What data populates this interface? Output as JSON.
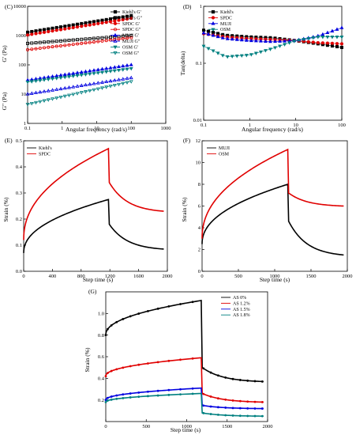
{
  "chart_data": [
    {
      "id": "C",
      "type": "scatter",
      "panel_label": "(C)",
      "xlabel": "Angular frequency (rad/s)",
      "ylabel_top": "G' (Pa)",
      "ylabel_bottom": "G\" (Pa)",
      "xscale": "log",
      "yscale": "log",
      "xlim": [
        0.1,
        1000
      ],
      "ylim": [
        1,
        10000
      ],
      "xticks": [
        0.1,
        1,
        10,
        100,
        1000
      ],
      "xtick_labels": [
        "0.1",
        "1",
        "10",
        "100",
        "1000"
      ],
      "yticks": [
        1,
        10,
        100,
        1000,
        10000
      ],
      "ytick_labels": [
        "1",
        "10",
        "100",
        "1000",
        "10000"
      ],
      "legend_position": "top-right",
      "series": [
        {
          "name": "Kiehl's G'",
          "color": "#000000",
          "marker": "square",
          "filled": true,
          "x": [
            0.1,
            100
          ],
          "y": [
            1300,
            4800
          ]
        },
        {
          "name": "Kiehl's G\"",
          "color": "#000000",
          "marker": "square",
          "filled": false,
          "x": [
            0.1,
            100
          ],
          "y": [
            540,
            1000
          ]
        },
        {
          "name": "SPDC G'",
          "color": "#e00000",
          "marker": "circle",
          "filled": true,
          "x": [
            0.1,
            100
          ],
          "y": [
            1050,
            3900
          ]
        },
        {
          "name": "SPDC G\"",
          "color": "#e00000",
          "marker": "circle",
          "filled": false,
          "x": [
            0.1,
            100
          ],
          "y": [
            330,
            850
          ]
        },
        {
          "name": "MUJI G'",
          "color": "#0000e0",
          "marker": "triangle",
          "filled": true,
          "x": [
            0.1,
            100
          ],
          "y": [
            30,
            100
          ]
        },
        {
          "name": "MUJI G\"",
          "color": "#0000e0",
          "marker": "triangle",
          "filled": false,
          "x": [
            0.1,
            100
          ],
          "y": [
            10,
            36
          ]
        },
        {
          "name": "OSM G'",
          "color": "#008080",
          "marker": "triangle-down",
          "filled": true,
          "x": [
            0.1,
            100
          ],
          "y": [
            26,
            75
          ]
        },
        {
          "name": "OSM G\"",
          "color": "#008080",
          "marker": "triangle-down",
          "filled": false,
          "x": [
            0.1,
            100
          ],
          "y": [
            4.5,
            27
          ]
        }
      ]
    },
    {
      "id": "D",
      "type": "scatter",
      "panel_label": "(D)",
      "xlabel": "Angular frequency (rad/s)",
      "ylabel": "Tan(delta)",
      "xscale": "log",
      "yscale": "log",
      "xlim": [
        0.1,
        100
      ],
      "ylim": [
        0.01,
        1
      ],
      "xticks": [
        0.1,
        1,
        10,
        100
      ],
      "xtick_labels": [
        "0.1",
        "1",
        "10",
        "100"
      ],
      "yticks": [
        0.01,
        0.1,
        1
      ],
      "ytick_labels": [
        "0.01",
        "0.1",
        "1"
      ],
      "legend_position": "top-left",
      "series": [
        {
          "name": "Kiehl's",
          "color": "#000000",
          "marker": "square",
          "x": [
            0.1,
            0.3,
            1,
            3,
            10,
            30,
            100
          ],
          "y": [
            0.38,
            0.31,
            0.29,
            0.28,
            0.25,
            0.22,
            0.19
          ]
        },
        {
          "name": "SPDC",
          "color": "#e00000",
          "marker": "circle",
          "x": [
            0.1,
            0.3,
            1,
            3,
            10,
            30,
            100
          ],
          "y": [
            0.33,
            0.29,
            0.27,
            0.26,
            0.25,
            0.23,
            0.22
          ]
        },
        {
          "name": "MUJI",
          "color": "#0000e0",
          "marker": "triangle",
          "x": [
            0.1,
            0.3,
            1,
            3,
            10,
            30,
            100
          ],
          "y": [
            0.34,
            0.27,
            0.25,
            0.24,
            0.25,
            0.3,
            0.42
          ]
        },
        {
          "name": "OSM",
          "color": "#008080",
          "marker": "triangle-down",
          "x": [
            0.1,
            0.3,
            1,
            3,
            10,
            30,
            100
          ],
          "y": [
            0.2,
            0.13,
            0.14,
            0.18,
            0.25,
            0.29,
            0.29
          ]
        }
      ]
    },
    {
      "id": "E",
      "type": "line",
      "panel_label": "(E)",
      "xlabel": "Step time (s)",
      "ylabel": "Strain (%)",
      "xlim": [
        0,
        2000
      ],
      "ylim": [
        0,
        0.5
      ],
      "xticks": [
        0,
        400,
        800,
        1200,
        1600,
        2000
      ],
      "xtick_labels": [
        "0",
        "400",
        "800",
        "1200",
        "1600",
        "2000"
      ],
      "yticks": [
        0,
        0.1,
        0.2,
        0.3,
        0.4,
        0.5
      ],
      "ytick_labels": [
        "0.0",
        "0.1",
        "0.2",
        "0.3",
        "0.4",
        "0.5"
      ],
      "legend_position": "top-left",
      "series": [
        {
          "name": "Kiehl's",
          "color": "#000000",
          "creep_start": 0.07,
          "creep_end": 0.275,
          "recovery_drop_to": 0.18,
          "final": 0.085
        },
        {
          "name": "SPDC",
          "color": "#e00000",
          "creep_start": 0.12,
          "creep_end": 0.47,
          "recovery_drop_to": 0.34,
          "final": 0.23
        }
      ]
    },
    {
      "id": "F",
      "type": "line",
      "panel_label": "(F)",
      "xlabel": "Step time (s)",
      "ylabel": "Strain (%)",
      "xlim": [
        0,
        2000
      ],
      "ylim": [
        0,
        12
      ],
      "xticks": [
        0,
        500,
        1000,
        1500,
        2000
      ],
      "xtick_labels": [
        "0",
        "500",
        "1000",
        "1500",
        "2000"
      ],
      "yticks": [
        0,
        2,
        4,
        6,
        8,
        10,
        12
      ],
      "ytick_labels": [
        "0",
        "2",
        "4",
        "6",
        "8",
        "10",
        "12"
      ],
      "legend_position": "top-left",
      "series": [
        {
          "name": "MUJI",
          "color": "#000000",
          "creep_start": 2.5,
          "creep_end": 8.0,
          "recovery_drop_to": 4.6,
          "final": 1.5
        },
        {
          "name": "OSM",
          "color": "#e00000",
          "creep_start": 3.0,
          "creep_end": 11.2,
          "recovery_drop_to": 7.2,
          "final": 6.0
        }
      ]
    },
    {
      "id": "G",
      "type": "line",
      "panel_label": "(G)",
      "xlabel": "Step time (s)",
      "ylabel": "Strain (%)",
      "xlim": [
        0,
        2000
      ],
      "ylim": [
        0,
        1.2
      ],
      "xticks": [
        0,
        500,
        1000,
        1500,
        2000
      ],
      "xtick_labels": [
        "0",
        "500",
        "1000",
        "1500",
        "2000"
      ],
      "yticks": [
        0.2,
        0.4,
        0.6,
        0.8,
        1.0
      ],
      "ytick_labels": [
        "0.2",
        "0.4",
        "0.6",
        "0.8",
        "1.0"
      ],
      "legend_position": "top-right",
      "series": [
        {
          "name": "AS 0%",
          "color": "#000000",
          "creep_start": 0.8,
          "creep_end": 1.12,
          "recovery_drop_to": 0.5,
          "final": 0.37
        },
        {
          "name": "AS 1.2%",
          "color": "#e00000",
          "creep_start": 0.42,
          "creep_end": 0.59,
          "recovery_drop_to": 0.26,
          "final": 0.18
        },
        {
          "name": "AS 1.5%",
          "color": "#0000e0",
          "creep_start": 0.2,
          "creep_end": 0.31,
          "recovery_drop_to": 0.15,
          "final": 0.12
        },
        {
          "name": "AS 1.8%",
          "color": "#008080",
          "creep_start": 0.18,
          "creep_end": 0.26,
          "recovery_drop_to": 0.08,
          "final": 0.05
        }
      ]
    }
  ]
}
